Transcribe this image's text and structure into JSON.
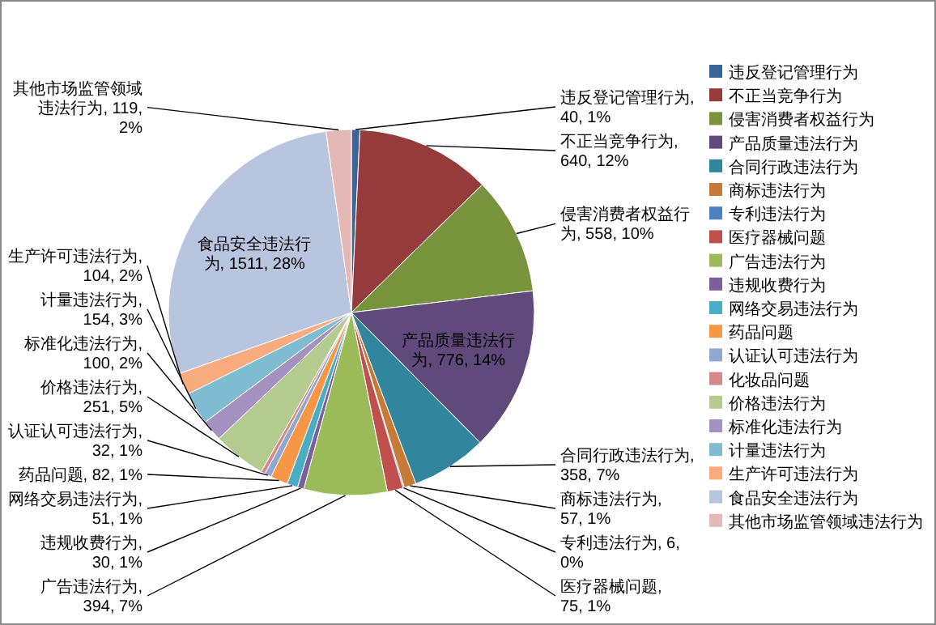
{
  "chart_data": {
    "type": "pie",
    "legend": "right",
    "categories": [
      "违反登记管理行为",
      "不正当竞争行为",
      "侵害消费者权益行为",
      "产品质量违法行为",
      "合同行政违法行为",
      "商标违法行为",
      "专利违法行为",
      "医疗器械问题",
      "广告违法行为",
      "违规收费行为",
      "网络交易违法行为",
      "药品问题",
      "认证认可违法行为",
      "化妆品问题",
      "价格违法行为",
      "标准化违法行为",
      "计量违法行为",
      "生产许可违法行为",
      "食品安全违法行为",
      "其他市场监管领域违法行为"
    ],
    "values": [
      40,
      640,
      558,
      776,
      358,
      57,
      6,
      75,
      394,
      30,
      51,
      82,
      32,
      20,
      251,
      100,
      154,
      104,
      1511,
      119
    ],
    "colors": [
      "#3b6497",
      "#953b3b",
      "#77933c",
      "#604a7b",
      "#31859c",
      "#c77a35",
      "#4f81bd",
      "#c0504d",
      "#9bbb59",
      "#7a5f9c",
      "#4bacc6",
      "#f79646",
      "#8ea8d2",
      "#d48a89",
      "#b3cb8f",
      "#a392c1",
      "#7fbcd1",
      "#f9ab7d",
      "#b8c5df",
      "#e3b8b7"
    ],
    "value_labels": [
      "违反登记管理行为, 40, 1%",
      "不正当竞争行为, 640, 12%",
      "侵害消费者权益行为, 558, 10%",
      "产品质量违法行为, 776, 14%",
      "合同行政违法行为, 358, 7%",
      "商标违法行为, 57, 1%",
      "专利违法行为, 6, 0%",
      "医疗器械问题, 75, 1%",
      "广告违法行为, 394, 7%",
      "违规收费行为, 30, 1%",
      "网络交易违法行为, 51, 1%",
      "药品问题, 82, 1%",
      "认证认可违法行为, 32, 1%",
      null,
      "价格违法行为, 251, 5%",
      "标准化违法行为, 100, 2%",
      "计量违法行为, 154, 3%",
      "生产许可违法行为, 104, 2%",
      "食品安全违法行为, 1511, 28%",
      "其他市场监管领域违法行为, 119, 2%"
    ]
  }
}
